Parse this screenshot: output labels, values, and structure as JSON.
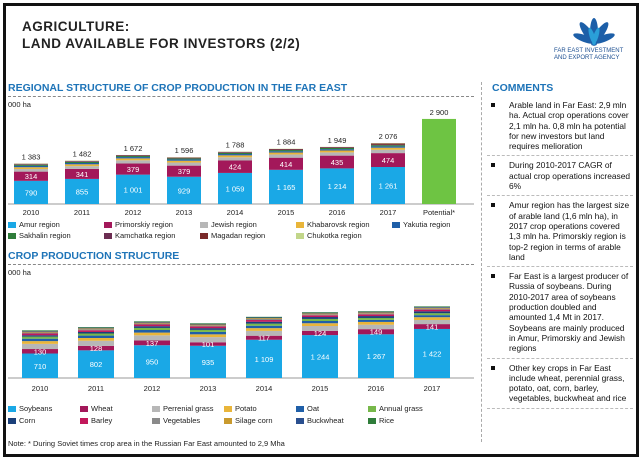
{
  "header": {
    "title_line1": "AGRICULTURE:",
    "title_line2": "LAND AVAILABLE FOR INVESTORS (2/2)",
    "logo_line1": "FAR EAST INVESTMENT",
    "logo_line2": "AND EXPORT AGENCY"
  },
  "colors": {
    "amur": "#1aa8e6",
    "primorsky": "#a3185a",
    "jewish": "#b7b7b7",
    "khabarovsk": "#e9b53a",
    "yakutia": "#1f5fa8",
    "sakhalin": "#2f7d3a",
    "kamchatka": "#6c2d52",
    "magadan": "#7a2a2a",
    "chukotka": "#c2d68a",
    "potential": "#6ec443"
  },
  "chart_data": [
    {
      "type": "bar",
      "stacked": true,
      "title": "REGIONAL STRUCTURE OF CROP PRODUCTION IN THE FAR EAST",
      "ylabel": "000 ha",
      "categories": [
        "2010",
        "2011",
        "2012",
        "2013",
        "2014",
        "2015",
        "2016",
        "2017",
        "Potential*"
      ],
      "totals": [
        "1 383",
        "1 482",
        "1 672",
        "1 596",
        "1 788",
        "1 884",
        "1 949",
        "2 076",
        "2 900"
      ],
      "total_values": [
        1383,
        1482,
        1672,
        1596,
        1788,
        1884,
        1949,
        2076,
        2900
      ],
      "series": [
        {
          "name": "Amur region",
          "values": [
            790,
            855,
            1001,
            929,
            1059,
            1165,
            1214,
            1261,
            0
          ],
          "labels": [
            "790",
            "855",
            "1 001",
            "929",
            "1 059",
            "1 165",
            "1 214",
            "1 261",
            ""
          ]
        },
        {
          "name": "Primorskiy region",
          "values": [
            314,
            341,
            379,
            379,
            424,
            414,
            435,
            474,
            0
          ],
          "labels": [
            "314",
            "341",
            "379",
            "379",
            "424",
            "414",
            "435",
            "474",
            ""
          ]
        },
        {
          "name": "Jewish region",
          "values": [
            90,
            95,
            110,
            105,
            110,
            110,
            110,
            115,
            0
          ]
        },
        {
          "name": "Khabarovsk region",
          "values": [
            60,
            62,
            65,
            62,
            65,
            65,
            65,
            70,
            0
          ]
        },
        {
          "name": "Yakutia region",
          "values": [
            45,
            45,
            45,
            45,
            45,
            45,
            45,
            45,
            0
          ]
        },
        {
          "name": "Sakhalin region",
          "values": [
            40,
            40,
            35,
            35,
            40,
            40,
            40,
            40,
            0
          ]
        },
        {
          "name": "Kamchatka region",
          "values": [
            20,
            20,
            20,
            20,
            20,
            20,
            20,
            20,
            0
          ]
        },
        {
          "name": "Magadan region",
          "values": [
            14,
            14,
            12,
            12,
            15,
            15,
            12,
            40,
            0
          ]
        },
        {
          "name": "Chukotka region",
          "values": [
            10,
            10,
            5,
            9,
            10,
            10,
            8,
            11,
            0
          ]
        },
        {
          "name": "",
          "values": [
            0,
            0,
            0,
            0,
            0,
            0,
            0,
            0,
            2900
          ]
        }
      ],
      "ylim": [
        0,
        3000
      ],
      "grid": false
    },
    {
      "type": "bar",
      "stacked": true,
      "title": "CROP PRODUCTION STRUCTURE",
      "ylabel": "000 ha",
      "categories": [
        "2010",
        "2011",
        "2012",
        "2013",
        "2014",
        "2015",
        "2016",
        "2017"
      ],
      "series": [
        {
          "name": "Soybeans",
          "values": [
            710,
            802,
            950,
            935,
            1109,
            1244,
            1267,
            1422
          ],
          "labels": [
            "710",
            "802",
            "950",
            "935",
            "1 109",
            "1 244",
            "1 267",
            "1 422"
          ]
        },
        {
          "name": "Wheat",
          "values": [
            130,
            128,
            137,
            101,
            117,
            124,
            149,
            141
          ],
          "labels": [
            "130",
            "128",
            "137",
            "101",
            "117",
            "124",
            "149",
            "141"
          ]
        },
        {
          "name": "Perrenial grass",
          "values": [
            150,
            150,
            150,
            150,
            140,
            140,
            130,
            120
          ]
        },
        {
          "name": "Potato",
          "values": [
            80,
            80,
            80,
            80,
            80,
            80,
            80,
            80
          ]
        },
        {
          "name": "Oat",
          "values": [
            70,
            70,
            75,
            70,
            70,
            65,
            60,
            60
          ]
        },
        {
          "name": "Annual grass",
          "values": [
            60,
            60,
            60,
            60,
            60,
            60,
            55,
            55
          ]
        },
        {
          "name": "Corn",
          "values": [
            40,
            45,
            50,
            50,
            55,
            55,
            55,
            55
          ]
        },
        {
          "name": "Barley",
          "values": [
            50,
            50,
            50,
            50,
            50,
            50,
            50,
            50
          ]
        },
        {
          "name": "Vegetables",
          "values": [
            30,
            30,
            30,
            30,
            30,
            30,
            30,
            30
          ]
        },
        {
          "name": "Silage corn",
          "values": [
            25,
            25,
            25,
            25,
            25,
            25,
            25,
            25
          ]
        },
        {
          "name": "Buckwheat",
          "values": [
            20,
            20,
            20,
            20,
            20,
            20,
            20,
            20
          ]
        },
        {
          "name": "Rice",
          "values": [
            18,
            18,
            18,
            18,
            18,
            18,
            18,
            18
          ]
        }
      ],
      "ylim": [
        0,
        2900
      ],
      "grid": false
    }
  ],
  "legend1": [
    {
      "name": "Amur region",
      "color": "#1aa8e6"
    },
    {
      "name": "Primorskiy region",
      "color": "#a3185a"
    },
    {
      "name": "Jewish region",
      "color": "#b7b7b7"
    },
    {
      "name": "Khabarovsk region",
      "color": "#e9b53a"
    },
    {
      "name": "Yakutia region",
      "color": "#1f5fa8"
    },
    {
      "name": "Sakhalin region",
      "color": "#2f7d3a"
    },
    {
      "name": "Kamchatka region",
      "color": "#6c2d52"
    },
    {
      "name": "Magadan region",
      "color": "#7a2a2a"
    },
    {
      "name": "Chukotka region",
      "color": "#c2d68a"
    }
  ],
  "legend2": [
    {
      "name": "Soybeans",
      "color": "#1aa8e6"
    },
    {
      "name": "Wheat",
      "color": "#a3185a"
    },
    {
      "name": "Perrenial grass",
      "color": "#b7b7b7"
    },
    {
      "name": "Potato",
      "color": "#e9b53a"
    },
    {
      "name": "Oat",
      "color": "#1f5fa8"
    },
    {
      "name": "Annual grass",
      "color": "#77b84a"
    },
    {
      "name": "Corn",
      "color": "#1a3f7a"
    },
    {
      "name": "Barley",
      "color": "#c2185b"
    },
    {
      "name": "Vegetables",
      "color": "#8a8a8a"
    },
    {
      "name": "Silage corn",
      "color": "#c99a2e"
    },
    {
      "name": "Buckwheat",
      "color": "#2a4f8f"
    },
    {
      "name": "Rice",
      "color": "#2f7d3a"
    }
  ],
  "chart2_colors": [
    "#1aa8e6",
    "#a3185a",
    "#b7b7b7",
    "#e9b53a",
    "#1f5fa8",
    "#77b84a",
    "#1a3f7a",
    "#c2185b",
    "#8a8a8a",
    "#c99a2e",
    "#2a4f8f",
    "#2f7d3a"
  ],
  "comments": {
    "title": "COMMENTS",
    "items": [
      "Arable land in Far East: 2,9 mln ha. Actual crop operations cover 2,1 mln ha. 0,8 mln ha potential for new investors but land requires melioration",
      "During 2010-2017 CAGR of actual crop operations increased 6%",
      "Amur region has the largest size of arable land (1,6 mln ha), in 2017 crop operations covered 1,3 mln ha. Primorskiy region is top-2 region in terms of arable land",
      "Far East is a largest producer of Russia of soybeans. During 2010-2017 area of soybeans production doubled and amounted 1,4 Mt in 2017. Soybeans are mainly produced in Amur, Primorskiy and Jewish regions",
      "Other key crops in Far East include wheat, perennial grass, potato, oat, corn, barley, vegetables, buckwheat and rice"
    ]
  },
  "note": "Note: * During Soviet times crop area in the Russian Far East amounted to 2,9 Mha"
}
